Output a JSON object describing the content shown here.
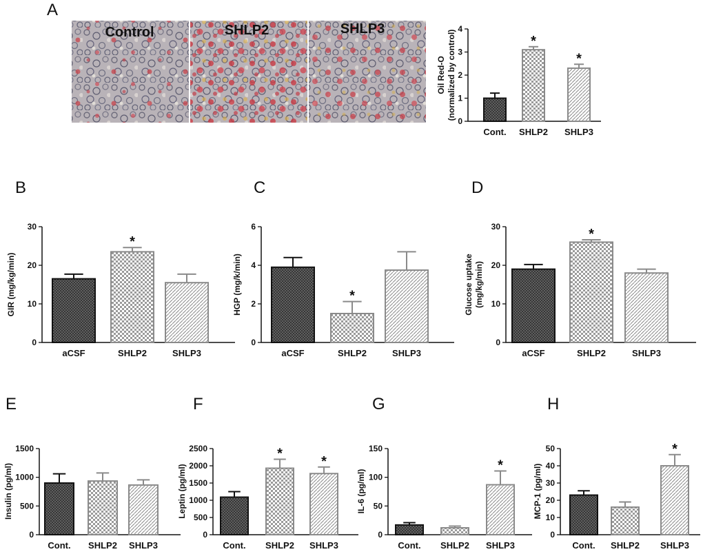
{
  "micrographs": {
    "panel": "A",
    "labels": [
      "Control",
      "SHLP2",
      "SHLP3"
    ]
  },
  "colors": {
    "cont_fill": "#3a3a3a",
    "shlp2_pattern": "checker",
    "shlp3_pattern": "diagonal",
    "axis": "#111111"
  },
  "chart_data": [
    {
      "id": "A",
      "panel": "A",
      "type": "bar",
      "categories": [
        "Cont.",
        "SHLP2",
        "SHLP3"
      ],
      "values": [
        1.0,
        3.1,
        2.3
      ],
      "errors": [
        0.22,
        0.13,
        0.17
      ],
      "significant": [
        false,
        true,
        true
      ],
      "ylabel": "Oil Red-O",
      "ylabel2": "(normalized by control)",
      "ylim": [
        0,
        4
      ],
      "yticks": [
        "0",
        "1",
        "2",
        "3",
        "4"
      ]
    },
    {
      "id": "B",
      "panel": "B",
      "type": "bar",
      "categories": [
        "aCSF",
        "SHLP2",
        "SHLP3"
      ],
      "values": [
        16.5,
        23.5,
        15.5
      ],
      "errors": [
        1.2,
        1.1,
        2.2
      ],
      "significant": [
        false,
        true,
        false
      ],
      "ylabel": "GIR (mg/kg/min)",
      "ylim": [
        0,
        30
      ],
      "yticks": [
        "0",
        "10",
        "20",
        "30"
      ]
    },
    {
      "id": "C",
      "panel": "C",
      "type": "bar",
      "categories": [
        "aCSF",
        "SHLP2",
        "SHLP3"
      ],
      "values": [
        3.9,
        1.5,
        3.75
      ],
      "errors": [
        0.5,
        0.62,
        0.95
      ],
      "significant": [
        false,
        true,
        false
      ],
      "ylabel": "HGP (mg/k/min)",
      "ylim": [
        0,
        6
      ],
      "yticks": [
        "0",
        "2",
        "4",
        "6"
      ]
    },
    {
      "id": "D",
      "panel": "D",
      "type": "bar",
      "categories": [
        "aCSF",
        "SHLP2",
        "SHLP3"
      ],
      "values": [
        19.0,
        26.0,
        18.0
      ],
      "errors": [
        1.2,
        0.6,
        1.0
      ],
      "significant": [
        false,
        true,
        false
      ],
      "ylabel": "Glucose uptake",
      "ylabel2": "(mg/kg/min)",
      "ylim": [
        0,
        30
      ],
      "yticks": [
        "0",
        "10",
        "20",
        "30"
      ]
    },
    {
      "id": "E",
      "panel": "E",
      "type": "bar",
      "categories": [
        "Cont.",
        "SHLP2",
        "SHLP3"
      ],
      "values": [
        900,
        935,
        865
      ],
      "errors": [
        160,
        140,
        90
      ],
      "significant": [
        false,
        false,
        false
      ],
      "ylabel": "Insulin (pg/ml)",
      "ylim": [
        0,
        1500
      ],
      "yticks": [
        "0",
        "500",
        "1000",
        "1500"
      ]
    },
    {
      "id": "F",
      "panel": "F",
      "type": "bar",
      "categories": [
        "Cont.",
        "SHLP2",
        "SHLP3"
      ],
      "values": [
        1090,
        1930,
        1775
      ],
      "errors": [
        160,
        260,
        190
      ],
      "significant": [
        false,
        true,
        true
      ],
      "ylabel": "Leptin (pg/ml)",
      "ylim": [
        0,
        2500
      ],
      "yticks": [
        "0",
        "500",
        "1000",
        "1500",
        "2000",
        "2500"
      ]
    },
    {
      "id": "G",
      "panel": "G",
      "type": "bar",
      "categories": [
        "Cont.",
        "SHLP2",
        "SHLP3"
      ],
      "values": [
        17,
        12,
        87
      ],
      "errors": [
        4,
        3,
        24
      ],
      "significant": [
        false,
        false,
        true
      ],
      "ylabel": "IL-6 (pg/ml)",
      "ylim": [
        0,
        150
      ],
      "yticks": [
        "0",
        "50",
        "100",
        "150"
      ]
    },
    {
      "id": "H",
      "panel": "H",
      "type": "bar",
      "categories": [
        "Cont.",
        "SHLP2",
        "SHLP3"
      ],
      "values": [
        23,
        16,
        40
      ],
      "errors": [
        2.5,
        3,
        6.5
      ],
      "significant": [
        false,
        false,
        true
      ],
      "ylabel": "MCP-1 (pg/ml)",
      "ylim": [
        0,
        50
      ],
      "yticks": [
        "0",
        "10",
        "20",
        "30",
        "40",
        "50"
      ]
    }
  ]
}
